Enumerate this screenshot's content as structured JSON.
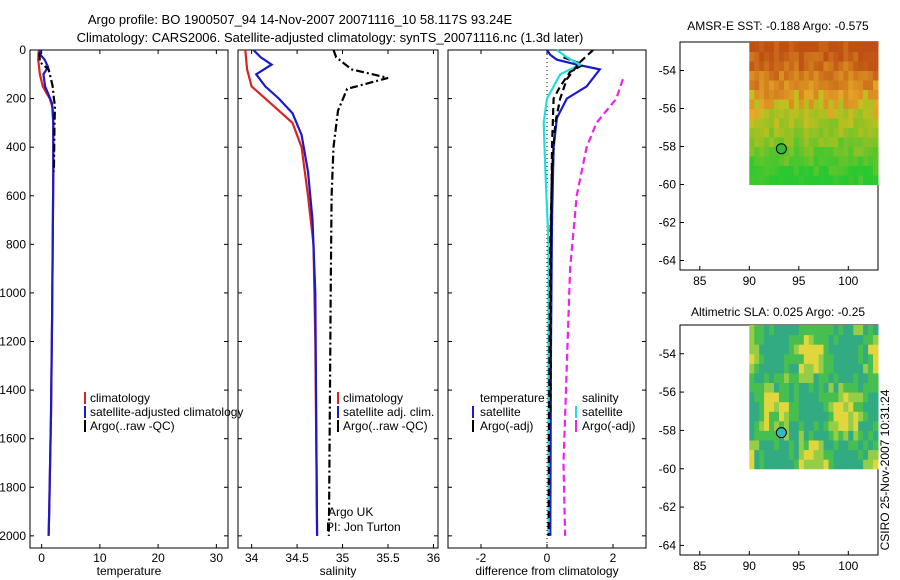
{
  "title": {
    "line1": "Argo profile: BO 1900507_94 14-Nov-2007 20071116_10 58.117S 93.24E",
    "line2": "Climatology: CARS2006. Satellite-adjusted climatology: synTS_20071116.nc (1.3d later)"
  },
  "side_stamp": "CSIRO 25-Nov-2007 10:31:24",
  "credits": {
    "line1": "Argo UK",
    "line2": "PI: Jon Turton"
  },
  "colors": {
    "climatology": "#dd2222",
    "satellite": "#1a1acc",
    "argo": "#000000",
    "sat_salinity": "#22dddd",
    "argo_salinity_diff": "#ee22ee"
  },
  "chart_data": [
    {
      "type": "line",
      "id": "temperature",
      "xlabel": "temperature",
      "xlim": [
        -2,
        32
      ],
      "ylim": [
        0,
        2050
      ],
      "x_ticks": [
        "0",
        "10",
        "20",
        "30"
      ],
      "y_ticks": [
        "0",
        "200",
        "400",
        "600",
        "800",
        "1000",
        "1200",
        "1400",
        "1600",
        "1800",
        "2000"
      ],
      "legend": [
        "climatology",
        "satellite-adjusted climatology",
        "Argo(..raw -QC)"
      ],
      "series": [
        {
          "name": "climatology",
          "color": "#dd2222",
          "style": "solid",
          "points": [
            [
              -0.5,
              0
            ],
            [
              -0.6,
              40
            ],
            [
              -0.3,
              100
            ],
            [
              0.2,
              150
            ],
            [
              0.9,
              180
            ],
            [
              1.4,
              200
            ],
            [
              1.9,
              240
            ],
            [
              2.0,
              300
            ],
            [
              2.0,
              500
            ],
            [
              1.9,
              800
            ],
            [
              1.8,
              1100
            ],
            [
              1.6,
              1500
            ],
            [
              1.3,
              1900
            ],
            [
              1.2,
              2000
            ]
          ]
        },
        {
          "name": "satellite-adjusted climatology",
          "color": "#1a1acc",
          "style": "solid",
          "points": [
            [
              -0.3,
              0
            ],
            [
              -0.2,
              20
            ],
            [
              0.5,
              40
            ],
            [
              1.1,
              70
            ],
            [
              0.3,
              100
            ],
            [
              0.6,
              150
            ],
            [
              1.3,
              190
            ],
            [
              1.8,
              220
            ],
            [
              2.0,
              300
            ],
            [
              2.0,
              500
            ],
            [
              1.9,
              800
            ],
            [
              1.8,
              1100
            ],
            [
              1.6,
              1500
            ],
            [
              1.3,
              1900
            ],
            [
              1.2,
              2000
            ]
          ]
        },
        {
          "name": "Argo(..raw -QC)",
          "color": "#000000",
          "style": "dashdot",
          "points": [
            [
              -0.4,
              10
            ],
            [
              -0.3,
              50
            ],
            [
              1.2,
              80
            ],
            [
              1.5,
              110
            ],
            [
              1.9,
              150
            ],
            [
              2.1,
              200
            ],
            [
              2.3,
              230
            ],
            [
              2.2,
              300
            ],
            [
              2.1,
              500
            ]
          ]
        }
      ]
    },
    {
      "type": "line",
      "id": "salinity",
      "xlabel": "salinity",
      "xlim": [
        33.85,
        36.05
      ],
      "ylim": [
        0,
        2050
      ],
      "x_ticks": [
        "34",
        "34.5",
        "35",
        "35.5",
        "36"
      ],
      "legend": [
        "climatology",
        "satellite adj. clim.",
        "Argo(..raw -QC)"
      ],
      "series": [
        {
          "name": "climatology",
          "color": "#dd2222",
          "style": "solid",
          "points": [
            [
              33.93,
              0
            ],
            [
              33.95,
              80
            ],
            [
              34.0,
              150
            ],
            [
              34.15,
              200
            ],
            [
              34.3,
              250
            ],
            [
              34.45,
              300
            ],
            [
              34.55,
              400
            ],
            [
              34.62,
              600
            ],
            [
              34.68,
              800
            ],
            [
              34.7,
              1200
            ],
            [
              34.71,
              1600
            ],
            [
              34.72,
              2000
            ]
          ]
        },
        {
          "name": "satellite adj. clim.",
          "color": "#1a1acc",
          "style": "solid",
          "points": [
            [
              34.02,
              0
            ],
            [
              34.1,
              30
            ],
            [
              34.22,
              60
            ],
            [
              34.05,
              100
            ],
            [
              34.15,
              150
            ],
            [
              34.3,
              200
            ],
            [
              34.45,
              260
            ],
            [
              34.55,
              350
            ],
            [
              34.62,
              500
            ],
            [
              34.67,
              700
            ],
            [
              34.7,
              1000
            ],
            [
              34.71,
              1500
            ],
            [
              34.72,
              2000
            ]
          ]
        },
        {
          "name": "Argo(..raw -QC)",
          "color": "#000000",
          "style": "dashdot",
          "points": [
            [
              34.9,
              0
            ],
            [
              34.93,
              30
            ],
            [
              35.1,
              80
            ],
            [
              35.5,
              115
            ],
            [
              35.05,
              160
            ],
            [
              34.95,
              250
            ],
            [
              34.9,
              400
            ],
            [
              34.88,
              600
            ],
            [
              34.87,
              1000
            ],
            [
              34.86,
              1500
            ],
            [
              34.85,
              2000
            ]
          ]
        }
      ]
    },
    {
      "type": "line",
      "id": "difference",
      "xlabel": "difference from climatology",
      "xlim": [
        -3,
        3
      ],
      "ylim": [
        0,
        2050
      ],
      "x_ticks": [
        "-2",
        "0",
        "2"
      ],
      "legend": [
        "temperature",
        "satellite",
        "Argo(-adj)",
        "salinity",
        "satellite",
        "Argo(-adj)"
      ],
      "series": [
        {
          "name": "temperature satellite",
          "color": "#1a1acc",
          "style": "solid",
          "points": [
            [
              0,
              0
            ],
            [
              0.1,
              20
            ],
            [
              0.3,
              40
            ],
            [
              0.9,
              60
            ],
            [
              1.6,
              80
            ],
            [
              1.2,
              150
            ],
            [
              0.6,
              200
            ],
            [
              0.3,
              280
            ],
            [
              0.2,
              400
            ],
            [
              0.15,
              700
            ],
            [
              0.12,
              1200
            ],
            [
              0.1,
              2000
            ]
          ]
        },
        {
          "name": "temperature Argo(-adj)",
          "color": "#000000",
          "style": "dashed",
          "points": [
            [
              0.5,
              30
            ],
            [
              1.1,
              60
            ],
            [
              0.7,
              90
            ],
            [
              0.4,
              150
            ],
            [
              0.2,
              200
            ],
            [
              0.15,
              400
            ],
            [
              0.12,
              800
            ],
            [
              0.1,
              1500
            ]
          ]
        },
        {
          "name": "salinity satellite",
          "color": "#22dddd",
          "style": "solid",
          "points": [
            [
              0.3,
              0
            ],
            [
              0.6,
              30
            ],
            [
              1.0,
              60
            ],
            [
              0.4,
              100
            ],
            [
              0.0,
              200
            ],
            [
              -0.1,
              300
            ],
            [
              -0.05,
              500
            ],
            [
              0.05,
              800
            ],
            [
              0.05,
              1200
            ],
            [
              0.05,
              2000
            ]
          ]
        },
        {
          "name": "salinity Argo(-adj)",
          "color": "#000000",
          "style": "dashed",
          "points": [
            [
              1.4,
              0
            ],
            [
              1.0,
              50
            ],
            [
              0.6,
              120
            ],
            [
              0.4,
              200
            ],
            [
              0.25,
              300
            ],
            [
              0.15,
              500
            ],
            [
              0.1,
              800
            ],
            [
              0.08,
              1200
            ],
            [
              0.06,
              1600
            ],
            [
              0.05,
              2000
            ]
          ]
        },
        {
          "name": "salinity Argo(-adj) magenta",
          "color": "#ee22ee",
          "style": "dashed",
          "points": [
            [
              2.3,
              120
            ],
            [
              2.1,
              200
            ],
            [
              1.5,
              300
            ],
            [
              1.2,
              400
            ],
            [
              0.9,
              600
            ],
            [
              0.7,
              900
            ],
            [
              0.6,
              1300
            ],
            [
              0.5,
              1700
            ],
            [
              0.55,
              2000
            ]
          ]
        }
      ]
    },
    {
      "type": "heatmap",
      "id": "sst_map",
      "title": "AMSR-E SST: -0.188  Argo: -0.575",
      "xlim": [
        83,
        103
      ],
      "ylim": [
        -64.5,
        -52.5
      ],
      "x_ticks": [
        "85",
        "90",
        "95",
        "100"
      ],
      "y_ticks": [
        "-54",
        "-56",
        "-58",
        "-60",
        "-62",
        "-64"
      ],
      "marker": [
        93.24,
        -58.117
      ]
    },
    {
      "type": "heatmap",
      "id": "sla_map",
      "title": "Altimetric SLA: 0.025  Argo: -0.25",
      "xlim": [
        83,
        103
      ],
      "ylim": [
        -64.5,
        -52.5
      ],
      "x_ticks": [
        "85",
        "90",
        "95",
        "100"
      ],
      "y_ticks": [
        "-54",
        "-56",
        "-58",
        "-60",
        "-62",
        "-64"
      ],
      "marker": [
        93.24,
        -58.117
      ]
    }
  ]
}
